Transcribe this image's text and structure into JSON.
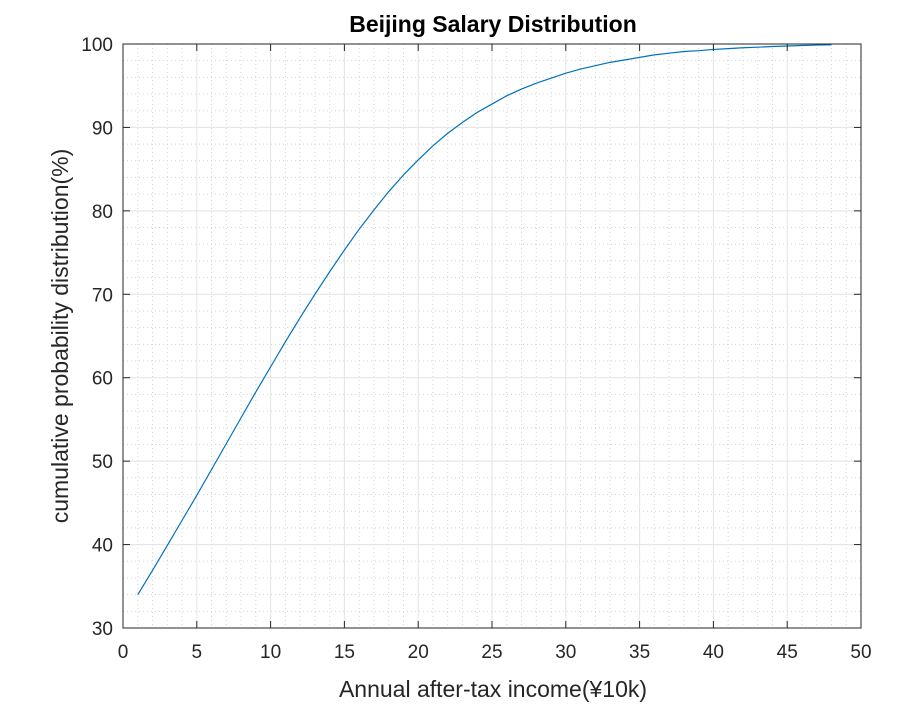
{
  "chart_data": {
    "type": "line",
    "title": "Beijing Salary Distribution",
    "xlabel": "Annual after-tax income(¥10k)",
    "ylabel": "cumulative probability distribution(%)",
    "xlim": [
      0,
      50
    ],
    "ylim": [
      30,
      100
    ],
    "xticks": [
      0,
      5,
      10,
      15,
      20,
      25,
      30,
      35,
      40,
      45,
      50
    ],
    "yticks": [
      30,
      40,
      50,
      60,
      70,
      80,
      90,
      100
    ],
    "grid": true,
    "minor_grid": true,
    "series": [
      {
        "color": "#0072BD",
        "x": [
          1,
          2,
          3,
          4,
          5,
          6,
          7,
          8,
          9,
          10,
          11,
          12,
          13,
          14,
          15,
          16,
          17,
          18,
          19,
          20,
          21,
          22,
          23,
          24,
          25,
          26,
          27,
          28,
          29,
          30,
          31,
          32,
          33,
          34,
          35,
          36,
          37,
          38,
          39,
          40,
          41,
          42,
          43,
          44,
          45,
          46,
          47,
          48
        ],
        "y": [
          34.0,
          36.9,
          39.9,
          42.9,
          45.9,
          49.0,
          52.1,
          55.2,
          58.3,
          61.3,
          64.3,
          67.2,
          70.0,
          72.7,
          75.3,
          77.8,
          80.1,
          82.3,
          84.3,
          86.1,
          87.8,
          89.3,
          90.6,
          91.8,
          92.8,
          93.8,
          94.6,
          95.3,
          95.9,
          96.5,
          97.0,
          97.4,
          97.8,
          98.1,
          98.4,
          98.7,
          98.9,
          99.1,
          99.2,
          99.35,
          99.45,
          99.55,
          99.62,
          99.7,
          99.76,
          99.82,
          99.87,
          99.9
        ]
      }
    ]
  }
}
